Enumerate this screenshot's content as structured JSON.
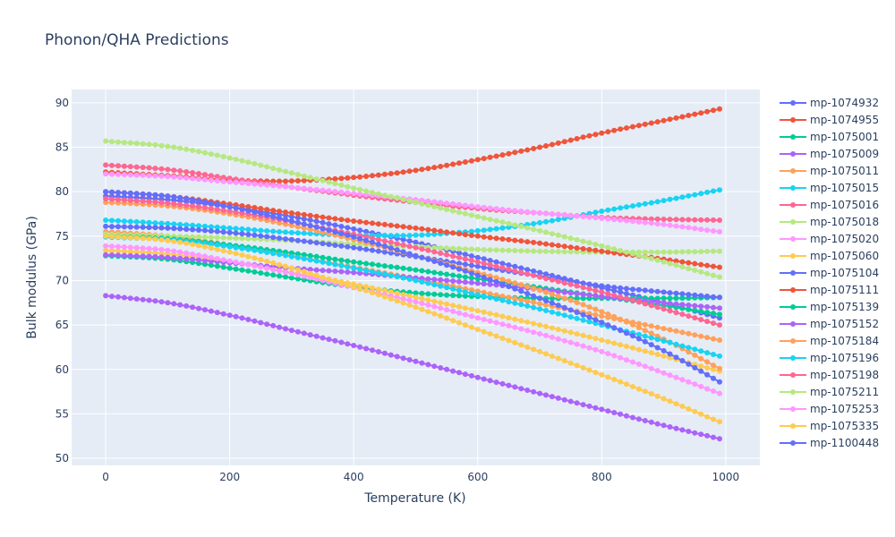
{
  "chart_data": {
    "type": "line",
    "mode": "lines+markers",
    "title": "Phonon/QHA Predictions",
    "xlabel": "Temperature (K)",
    "ylabel": "Bulk modulus (GPa)",
    "xlim": [
      -55,
      1055
    ],
    "ylim": [
      49.2,
      91.5
    ],
    "xticks": [
      0,
      200,
      400,
      600,
      800,
      1000
    ],
    "yticks": [
      50,
      55,
      60,
      65,
      70,
      75,
      80,
      85,
      90
    ],
    "grid": true,
    "legend_position": "right",
    "x_start": 0,
    "x_step": 10,
    "x_end": 990,
    "series": [
      {
        "name": "mp-1074932",
        "color": "#636efa",
        "keypoints": [
          [
            0,
            79.5
          ],
          [
            100,
            79.1
          ],
          [
            200,
            78.3
          ],
          [
            300,
            77.2
          ],
          [
            400,
            75.8
          ],
          [
            500,
            74.3
          ],
          [
            600,
            72.6
          ],
          [
            700,
            70.9
          ],
          [
            800,
            69.2
          ],
          [
            900,
            67.5
          ],
          [
            990,
            65.8
          ]
        ]
      },
      {
        "name": "mp-1074955",
        "color": "#EF553B",
        "keypoints": [
          [
            0,
            82.2
          ],
          [
            100,
            81.8
          ],
          [
            200,
            81.3
          ],
          [
            250,
            81.2
          ],
          [
            300,
            81.2
          ],
          [
            400,
            81.6
          ],
          [
            500,
            82.4
          ],
          [
            600,
            83.6
          ],
          [
            700,
            85.0
          ],
          [
            800,
            86.6
          ],
          [
            900,
            88.0
          ],
          [
            990,
            89.3
          ]
        ]
      },
      {
        "name": "mp-1075001",
        "color": "#00cc96",
        "keypoints": [
          [
            0,
            72.8
          ],
          [
            100,
            72.4
          ],
          [
            200,
            71.4
          ],
          [
            300,
            70.3
          ],
          [
            400,
            69.3
          ],
          [
            500,
            68.6
          ],
          [
            600,
            68.2
          ],
          [
            700,
            68.0
          ],
          [
            800,
            68.0
          ],
          [
            900,
            68.0
          ],
          [
            990,
            68.1
          ]
        ]
      },
      {
        "name": "mp-1075009",
        "color": "#ab63fa",
        "keypoints": [
          [
            0,
            68.3
          ],
          [
            100,
            67.5
          ],
          [
            200,
            66.1
          ],
          [
            300,
            64.4
          ],
          [
            400,
            62.7
          ],
          [
            500,
            60.9
          ],
          [
            600,
            59.1
          ],
          [
            700,
            57.3
          ],
          [
            800,
            55.5
          ],
          [
            900,
            53.7
          ],
          [
            990,
            52.2
          ]
        ]
      },
      {
        "name": "mp-1075011",
        "color": "#FFA15A",
        "keypoints": [
          [
            0,
            75.5
          ],
          [
            100,
            75.0
          ],
          [
            200,
            74.0
          ],
          [
            300,
            72.8
          ],
          [
            400,
            71.5
          ],
          [
            500,
            70.2
          ],
          [
            600,
            68.8
          ],
          [
            700,
            67.4
          ],
          [
            800,
            66.0
          ],
          [
            900,
            64.6
          ],
          [
            990,
            63.3
          ]
        ]
      },
      {
        "name": "mp-1075015",
        "color": "#19d3f3",
        "keypoints": [
          [
            0,
            76.8
          ],
          [
            100,
            76.4
          ],
          [
            200,
            75.9
          ],
          [
            300,
            75.4
          ],
          [
            400,
            75.1
          ],
          [
            500,
            75.1
          ],
          [
            600,
            75.6
          ],
          [
            700,
            76.5
          ],
          [
            800,
            77.8
          ],
          [
            900,
            79.0
          ],
          [
            990,
            80.2
          ]
        ]
      },
      {
        "name": "mp-1075016",
        "color": "#FF6692",
        "keypoints": [
          [
            0,
            83.0
          ],
          [
            100,
            82.5
          ],
          [
            200,
            81.5
          ],
          [
            300,
            80.5
          ],
          [
            400,
            79.6
          ],
          [
            500,
            78.8
          ],
          [
            600,
            78.1
          ],
          [
            700,
            77.6
          ],
          [
            800,
            77.1
          ],
          [
            900,
            76.9
          ],
          [
            990,
            76.8
          ]
        ]
      },
      {
        "name": "mp-1075018",
        "color": "#B6E880",
        "keypoints": [
          [
            0,
            75.2
          ],
          [
            100,
            75.0
          ],
          [
            200,
            74.8
          ],
          [
            300,
            74.5
          ],
          [
            400,
            74.1
          ],
          [
            500,
            73.8
          ],
          [
            600,
            73.5
          ],
          [
            700,
            73.3
          ],
          [
            800,
            73.2
          ],
          [
            900,
            73.2
          ],
          [
            990,
            73.3
          ]
        ]
      },
      {
        "name": "mp-1075020",
        "color": "#FF97FF",
        "keypoints": [
          [
            0,
            82.0
          ],
          [
            100,
            81.7
          ],
          [
            200,
            81.1
          ],
          [
            300,
            80.5
          ],
          [
            400,
            79.8
          ],
          [
            500,
            79.1
          ],
          [
            600,
            78.3
          ],
          [
            700,
            77.6
          ],
          [
            800,
            77.0
          ],
          [
            900,
            76.3
          ],
          [
            990,
            75.5
          ]
        ]
      },
      {
        "name": "mp-1075060",
        "color": "#FECB52",
        "keypoints": [
          [
            0,
            73.4
          ],
          [
            100,
            73.0
          ],
          [
            200,
            72.1
          ],
          [
            300,
            70.9
          ],
          [
            400,
            69.6
          ],
          [
            500,
            68.1
          ],
          [
            600,
            66.6
          ],
          [
            700,
            65.0
          ],
          [
            800,
            63.3
          ],
          [
            900,
            61.5
          ],
          [
            990,
            59.8
          ]
        ]
      },
      {
        "name": "mp-1075104",
        "color": "#636efa",
        "keypoints": [
          [
            0,
            76.1
          ],
          [
            100,
            75.9
          ],
          [
            200,
            75.4
          ],
          [
            300,
            74.6
          ],
          [
            400,
            73.7
          ],
          [
            500,
            72.7
          ],
          [
            600,
            71.6
          ],
          [
            700,
            70.5
          ],
          [
            800,
            69.4
          ],
          [
            900,
            68.7
          ],
          [
            990,
            68.1
          ]
        ]
      },
      {
        "name": "mp-1075111",
        "color": "#EF553B",
        "keypoints": [
          [
            0,
            80.0
          ],
          [
            100,
            79.5
          ],
          [
            200,
            78.6
          ],
          [
            300,
            77.6
          ],
          [
            400,
            76.7
          ],
          [
            500,
            75.9
          ],
          [
            600,
            75.0
          ],
          [
            700,
            74.2
          ],
          [
            800,
            73.3
          ],
          [
            900,
            72.4
          ],
          [
            990,
            71.5
          ]
        ]
      },
      {
        "name": "mp-1075139",
        "color": "#00cc96",
        "keypoints": [
          [
            0,
            75.0
          ],
          [
            100,
            74.7
          ],
          [
            200,
            74.0
          ],
          [
            300,
            73.1
          ],
          [
            400,
            72.1
          ],
          [
            500,
            71.2
          ],
          [
            600,
            70.2
          ],
          [
            700,
            69.2
          ],
          [
            800,
            68.2
          ],
          [
            900,
            67.2
          ],
          [
            990,
            66.2
          ]
        ]
      },
      {
        "name": "mp-1075152",
        "color": "#ab63fa",
        "keypoints": [
          [
            0,
            72.9
          ],
          [
            100,
            72.6
          ],
          [
            200,
            72.0
          ],
          [
            300,
            71.4
          ],
          [
            400,
            70.9
          ],
          [
            500,
            70.3
          ],
          [
            600,
            69.7
          ],
          [
            700,
            69.0
          ],
          [
            800,
            68.2
          ],
          [
            900,
            67.5
          ],
          [
            990,
            66.9
          ]
        ]
      },
      {
        "name": "mp-1075184",
        "color": "#FFA15A",
        "keypoints": [
          [
            0,
            78.8
          ],
          [
            100,
            78.4
          ],
          [
            200,
            77.5
          ],
          [
            300,
            76.2
          ],
          [
            400,
            74.6
          ],
          [
            500,
            72.8
          ],
          [
            600,
            70.9
          ],
          [
            700,
            68.9
          ],
          [
            800,
            66.5
          ],
          [
            900,
            63.4
          ],
          [
            990,
            60.1
          ]
        ]
      },
      {
        "name": "mp-1075196",
        "color": "#19d3f3",
        "keypoints": [
          [
            0,
            74.9
          ],
          [
            100,
            74.6
          ],
          [
            200,
            73.8
          ],
          [
            300,
            72.7
          ],
          [
            400,
            71.4
          ],
          [
            500,
            70.0
          ],
          [
            600,
            68.4
          ],
          [
            700,
            66.8
          ],
          [
            800,
            65.0
          ],
          [
            900,
            63.2
          ],
          [
            990,
            61.5
          ]
        ]
      },
      {
        "name": "mp-1075198",
        "color": "#FF6692",
        "keypoints": [
          [
            0,
            79.2
          ],
          [
            100,
            78.7
          ],
          [
            200,
            77.8
          ],
          [
            300,
            76.6
          ],
          [
            400,
            75.2
          ],
          [
            500,
            73.7
          ],
          [
            600,
            72.1
          ],
          [
            700,
            70.4
          ],
          [
            800,
            68.7
          ],
          [
            900,
            66.8
          ],
          [
            990,
            65.0
          ]
        ]
      },
      {
        "name": "mp-1075211",
        "color": "#B6E880",
        "keypoints": [
          [
            0,
            85.7
          ],
          [
            100,
            85.1
          ],
          [
            200,
            83.8
          ],
          [
            300,
            82.1
          ],
          [
            400,
            80.4
          ],
          [
            500,
            78.8
          ],
          [
            600,
            77.2
          ],
          [
            700,
            75.6
          ],
          [
            800,
            73.9
          ],
          [
            900,
            72.1
          ],
          [
            990,
            70.4
          ]
        ]
      },
      {
        "name": "mp-1075253",
        "color": "#FF97FF",
        "keypoints": [
          [
            0,
            73.9
          ],
          [
            100,
            73.4
          ],
          [
            200,
            72.2
          ],
          [
            300,
            70.8
          ],
          [
            400,
            69.2
          ],
          [
            500,
            67.6
          ],
          [
            600,
            65.8
          ],
          [
            700,
            64.0
          ],
          [
            800,
            62.0
          ],
          [
            900,
            59.6
          ],
          [
            990,
            57.3
          ]
        ]
      },
      {
        "name": "mp-1075335",
        "color": "#FECB52",
        "keypoints": [
          [
            0,
            75.0
          ],
          [
            100,
            74.5
          ],
          [
            200,
            73.2
          ],
          [
            300,
            71.4
          ],
          [
            400,
            69.3
          ],
          [
            500,
            67.0
          ],
          [
            600,
            64.5
          ],
          [
            700,
            62.0
          ],
          [
            800,
            59.4
          ],
          [
            900,
            56.7
          ],
          [
            990,
            54.1
          ]
        ]
      },
      {
        "name": "mp-1100448",
        "color": "#636efa",
        "keypoints": [
          [
            0,
            80.0
          ],
          [
            100,
            79.5
          ],
          [
            200,
            78.3
          ],
          [
            300,
            76.7
          ],
          [
            400,
            74.9
          ],
          [
            500,
            72.8
          ],
          [
            600,
            70.6
          ],
          [
            700,
            68.0
          ],
          [
            800,
            65.3
          ],
          [
            900,
            62.1
          ],
          [
            990,
            58.6
          ]
        ]
      }
    ]
  }
}
